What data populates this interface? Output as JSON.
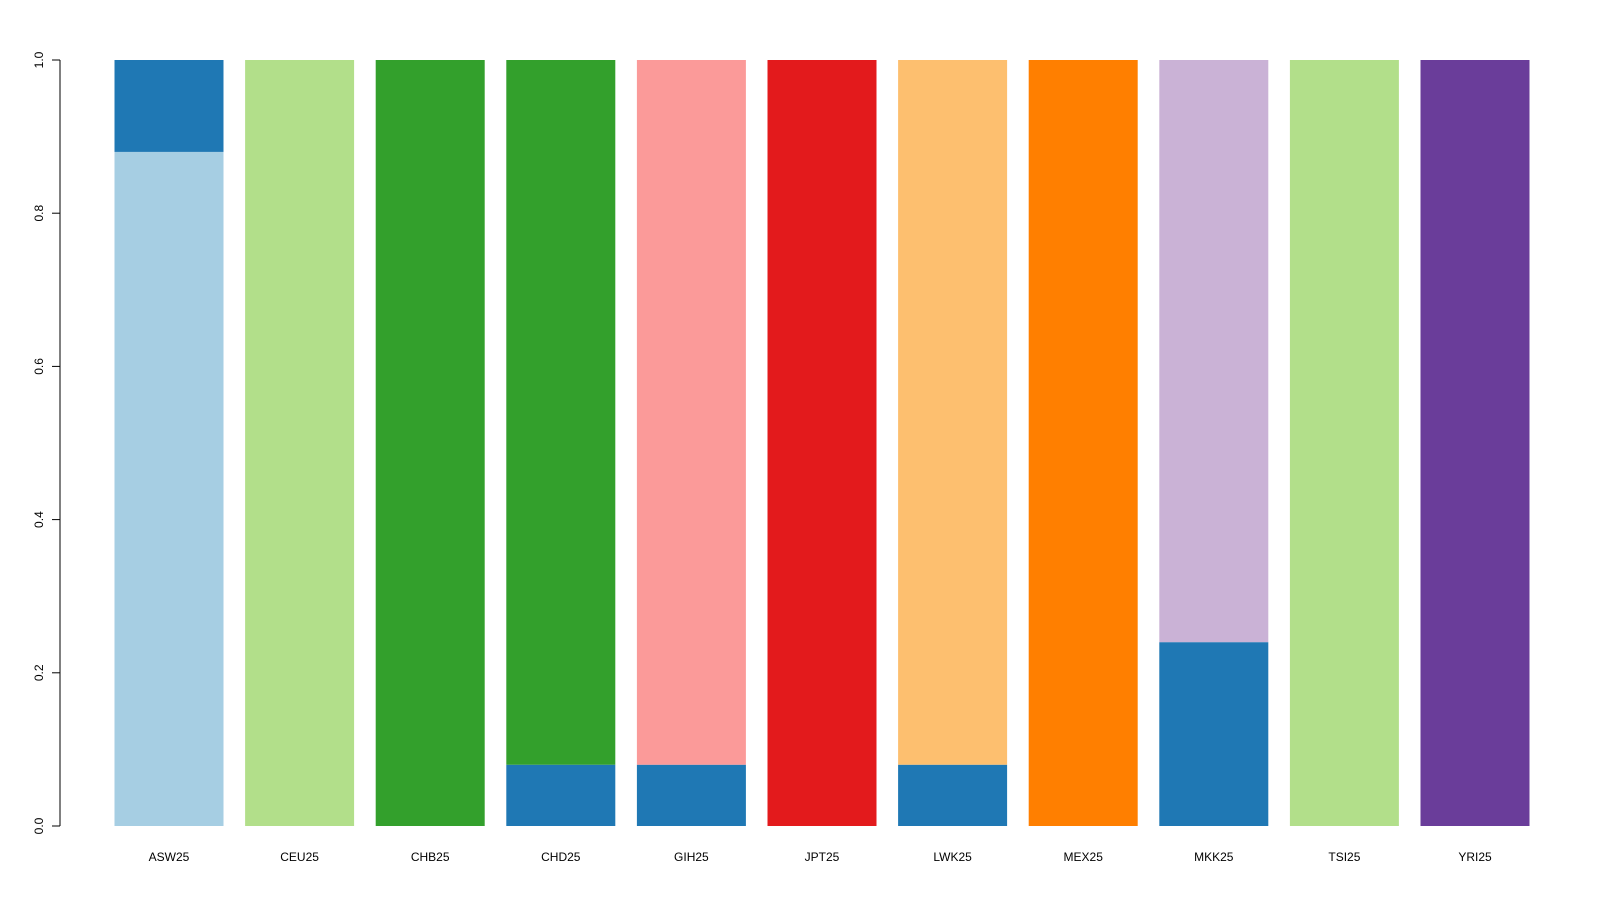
{
  "chart_data": {
    "type": "bar",
    "stacked": true,
    "categories": [
      "ASW25",
      "CEU25",
      "CHB25",
      "CHD25",
      "GIH25",
      "JPT25",
      "LWK25",
      "MEX25",
      "MKK25",
      "TSI25",
      "YRI25"
    ],
    "series": [
      {
        "color": "#a6cee3",
        "values": [
          0.88,
          0,
          0,
          0,
          0,
          0,
          0,
          0,
          0,
          0,
          0
        ]
      },
      {
        "color": "#1f78b4",
        "values": [
          0.12,
          0,
          0,
          0.08,
          0.08,
          0,
          0.08,
          0,
          0.24,
          0,
          0
        ]
      },
      {
        "color": "#b2df8a",
        "values": [
          0,
          1,
          0,
          0,
          0,
          0,
          0,
          0,
          0,
          1,
          0
        ]
      },
      {
        "color": "#33a02c",
        "values": [
          0,
          0,
          1,
          0.92,
          0,
          0,
          0,
          0,
          0,
          0,
          0
        ]
      },
      {
        "color": "#fb9a99",
        "values": [
          0,
          0,
          0,
          0,
          0.92,
          0,
          0,
          0,
          0,
          0,
          0
        ]
      },
      {
        "color": "#e31a1c",
        "values": [
          0,
          0,
          0,
          0,
          0,
          1,
          0,
          0,
          0,
          0,
          0
        ]
      },
      {
        "color": "#fdbf6f",
        "values": [
          0,
          0,
          0,
          0,
          0,
          0,
          0.92,
          0,
          0,
          0,
          0
        ]
      },
      {
        "color": "#ff7f00",
        "values": [
          0,
          0,
          0,
          0,
          0,
          0,
          0,
          1,
          0,
          0,
          0
        ]
      },
      {
        "color": "#cab2d6",
        "values": [
          0,
          0,
          0,
          0,
          0,
          0,
          0,
          0,
          0.76,
          0,
          0
        ]
      },
      {
        "color": "#6a3d9a",
        "values": [
          0,
          0,
          0,
          0,
          0,
          0,
          0,
          0,
          0,
          0,
          1
        ]
      }
    ],
    "ylim": [
      0,
      1
    ],
    "yticks": [
      {
        "value": 0,
        "label": "0.0"
      },
      0.2,
      0.4,
      0.6,
      0.8,
      {
        "value": 1,
        "label": "1.0"
      }
    ],
    "grid": false
  }
}
